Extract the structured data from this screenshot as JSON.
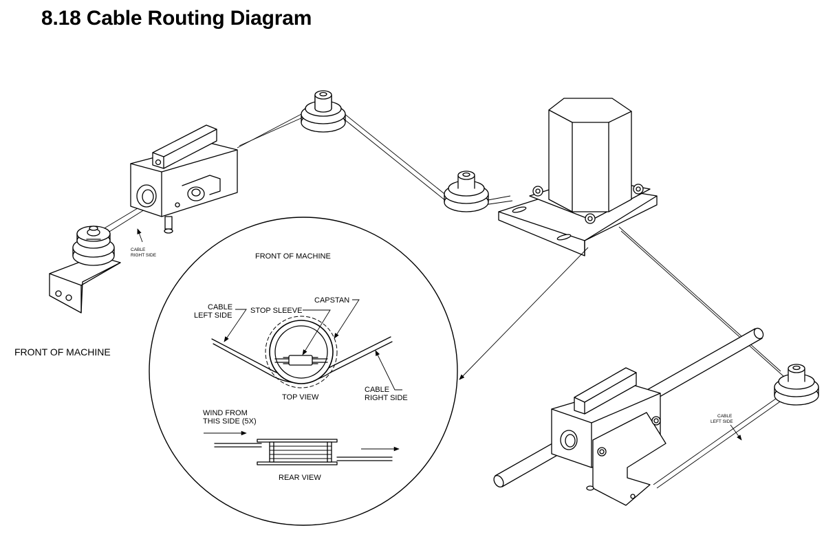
{
  "title": "8.18 Cable Routing Diagram",
  "labels": {
    "front_of_machine_left": "FRONT OF MACHINE",
    "cable_right_side_small_left": [
      "CABLE",
      "RIGHT SIDE"
    ],
    "cable_left_side_small_right": [
      "CABLE",
      "LEFT SIDE"
    ]
  },
  "detail": {
    "front_of_machine": "FRONT OF MACHINE",
    "cable_left_side": [
      "CABLE",
      "LEFT SIDE"
    ],
    "stop_sleeve": "STOP SLEEVE",
    "capstan": "CAPSTAN",
    "top_view": "TOP VIEW",
    "cable_right_side": [
      "CABLE",
      "RIGHT SIDE"
    ],
    "wind_from": [
      "WIND FROM",
      "THIS SIDE (5X)"
    ],
    "rear_view": "REAR VIEW"
  },
  "colors": {
    "line": "#000000",
    "background": "#ffffff"
  }
}
